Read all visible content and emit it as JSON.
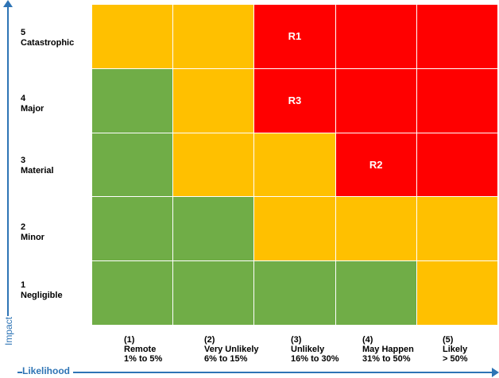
{
  "axes": {
    "impact_title": "Impact",
    "likelihood_title": "Likelihood"
  },
  "impact_levels": [
    {
      "num": "5",
      "name": "Catastrophic"
    },
    {
      "num": "4",
      "name": "Major"
    },
    {
      "num": "3",
      "name": "Material"
    },
    {
      "num": "2",
      "name": "Minor"
    },
    {
      "num": "1",
      "name": "Negligible"
    }
  ],
  "likelihood_levels": [
    {
      "num": "(1)",
      "name": "Remote",
      "range": "1% to 5%"
    },
    {
      "num": "(2)",
      "name": "Very Unlikely",
      "range": "6% to 15%"
    },
    {
      "num": "(3)",
      "name": "Unlikely",
      "range": "16% to 30%"
    },
    {
      "num": "(4)",
      "name": "May Happen",
      "range": "31% to 50%"
    },
    {
      "num": "(5)",
      "name": "Likely",
      "range": "> 50%"
    }
  ],
  "colors": {
    "G": "#70ad47",
    "A": "#ffc000",
    "R": "#ff0000",
    "accent": "#2e74b5"
  },
  "matrix": [
    [
      "A",
      "A",
      "R",
      "R",
      "R"
    ],
    [
      "G",
      "A",
      "R",
      "R",
      "R"
    ],
    [
      "G",
      "A",
      "A",
      "R",
      "R"
    ],
    [
      "G",
      "G",
      "A",
      "A",
      "A"
    ],
    [
      "G",
      "G",
      "G",
      "G",
      "A"
    ]
  ],
  "cell_labels": [
    [
      "",
      "",
      "R1",
      "",
      ""
    ],
    [
      "",
      "",
      "R3",
      "",
      ""
    ],
    [
      "",
      "",
      "",
      "R2",
      ""
    ],
    [
      "",
      "",
      "",
      "",
      ""
    ],
    [
      "",
      "",
      "",
      "",
      ""
    ]
  ]
}
